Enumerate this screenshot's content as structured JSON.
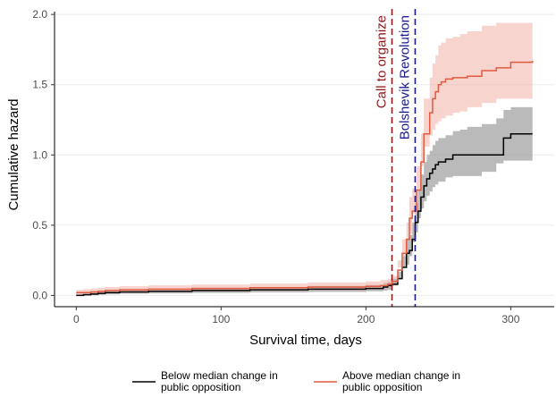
{
  "chart_data": {
    "type": "line",
    "title": "",
    "xlabel": "Survival time, days",
    "ylabel": "Cumulative hazard",
    "xlim": [
      -15,
      330
    ],
    "ylim": [
      -0.08,
      2.02
    ],
    "x_ticks": [
      0,
      100,
      200,
      300
    ],
    "y_ticks": [
      0.0,
      0.5,
      1.0,
      1.5,
      2.0
    ],
    "x_tick_labels": [
      "0",
      "100",
      "200",
      "300"
    ],
    "y_tick_labels": [
      "0.0",
      "0.5",
      "1.0",
      "1.5",
      "2.0"
    ],
    "grid": "horizontal",
    "legend_position": "bottom",
    "series": [
      {
        "name": "Below median change in public opposition",
        "color": "#000000",
        "band_color": "#8c8c8c",
        "x": [
          0,
          5,
          10,
          15,
          20,
          30,
          50,
          80,
          120,
          160,
          200,
          212,
          215,
          218,
          222,
          225,
          228,
          230,
          232,
          234,
          236,
          238,
          240,
          242,
          244,
          246,
          248,
          250,
          255,
          260,
          265,
          270,
          280,
          290,
          295,
          300,
          315
        ],
        "y": [
          0.0,
          0.005,
          0.01,
          0.015,
          0.02,
          0.025,
          0.03,
          0.035,
          0.04,
          0.045,
          0.05,
          0.06,
          0.07,
          0.08,
          0.12,
          0.2,
          0.3,
          0.32,
          0.4,
          0.52,
          0.6,
          0.7,
          0.78,
          0.83,
          0.87,
          0.9,
          0.93,
          0.95,
          0.97,
          1.0,
          1.0,
          1.0,
          1.0,
          1.0,
          1.12,
          1.15,
          1.15
        ],
        "lower": [
          0.0,
          0.0,
          0.0,
          0.002,
          0.005,
          0.008,
          0.012,
          0.015,
          0.018,
          0.022,
          0.025,
          0.03,
          0.035,
          0.04,
          0.07,
          0.12,
          0.2,
          0.22,
          0.28,
          0.38,
          0.45,
          0.55,
          0.62,
          0.67,
          0.71,
          0.74,
          0.77,
          0.79,
          0.81,
          0.84,
          0.85,
          0.85,
          0.85,
          0.88,
          0.94,
          0.96,
          0.96
        ],
        "upper": [
          0.01,
          0.015,
          0.025,
          0.03,
          0.035,
          0.042,
          0.048,
          0.055,
          0.06,
          0.068,
          0.075,
          0.09,
          0.1,
          0.12,
          0.17,
          0.28,
          0.4,
          0.43,
          0.52,
          0.66,
          0.75,
          0.86,
          0.95,
          1.0,
          1.03,
          1.07,
          1.1,
          1.12,
          1.14,
          1.17,
          1.18,
          1.2,
          1.22,
          1.26,
          1.32,
          1.34,
          1.34
        ]
      },
      {
        "name": "Above median change in public opposition",
        "color": "#e05a40",
        "band_color": "#f2b8ad",
        "x": [
          0,
          5,
          10,
          15,
          20,
          30,
          50,
          80,
          120,
          160,
          200,
          210,
          215,
          218,
          222,
          225,
          228,
          230,
          232,
          235,
          238,
          240,
          244,
          246,
          248,
          250,
          252,
          255,
          260,
          265,
          270,
          280,
          290,
          300,
          315
        ],
        "y": [
          0.02,
          0.02,
          0.025,
          0.03,
          0.035,
          0.04,
          0.045,
          0.05,
          0.055,
          0.06,
          0.065,
          0.07,
          0.08,
          0.1,
          0.18,
          0.3,
          0.4,
          0.55,
          0.6,
          0.75,
          0.95,
          1.15,
          1.3,
          1.4,
          1.45,
          1.5,
          1.52,
          1.54,
          1.55,
          1.55,
          1.56,
          1.6,
          1.62,
          1.66,
          1.67
        ],
        "lower": [
          0.005,
          0.005,
          0.01,
          0.012,
          0.015,
          0.018,
          0.022,
          0.026,
          0.03,
          0.034,
          0.038,
          0.042,
          0.048,
          0.06,
          0.12,
          0.2,
          0.28,
          0.4,
          0.44,
          0.58,
          0.75,
          0.92,
          1.06,
          1.14,
          1.18,
          1.22,
          1.24,
          1.26,
          1.28,
          1.3,
          1.31,
          1.34,
          1.37,
          1.4,
          1.4
        ],
        "upper": [
          0.04,
          0.045,
          0.05,
          0.055,
          0.06,
          0.066,
          0.072,
          0.078,
          0.085,
          0.092,
          0.1,
          0.11,
          0.12,
          0.14,
          0.25,
          0.4,
          0.52,
          0.7,
          0.76,
          0.92,
          1.15,
          1.4,
          1.55,
          1.65,
          1.71,
          1.78,
          1.8,
          1.83,
          1.84,
          1.86,
          1.88,
          1.92,
          1.94,
          1.94,
          1.94
        ]
      }
    ],
    "vertical_lines": [
      {
        "x": 218,
        "label": "Call to organize",
        "color": "#8b1a1a",
        "style": "dashed"
      },
      {
        "x": 234,
        "label": "Bolshevik Revolution",
        "color": "#1a1a8b",
        "style": "dashed"
      }
    ]
  }
}
